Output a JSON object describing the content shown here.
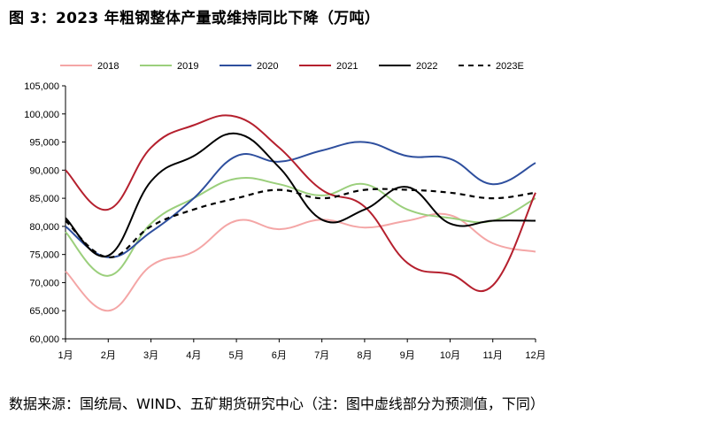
{
  "title": "图 3：2023 年粗钢整体产量或维持同比下降（万吨）",
  "source": "数据来源：国统局、WIND、五矿期货研究中心（注：图中虚线部分为预测值，下同）",
  "chart_data": {
    "type": "line",
    "categories": [
      "1月",
      "2月",
      "3月",
      "4月",
      "5月",
      "6月",
      "7月",
      "8月",
      "9月",
      "10月",
      "11月",
      "12月"
    ],
    "ylim": [
      60000,
      105000
    ],
    "yticks": [
      60000,
      65000,
      70000,
      75000,
      80000,
      85000,
      90000,
      95000,
      100000,
      105000
    ],
    "ytick_labels": [
      "60,000",
      "65,000",
      "70,000",
      "75,000",
      "80,000",
      "85,000",
      "90,000",
      "95,000",
      "100,000",
      "105,000"
    ],
    "legend_position": "top",
    "series": [
      {
        "name": "2018",
        "color": "#f4a6a6",
        "dash": false,
        "values": [
          72000,
          65000,
          73000,
          75500,
          81000,
          79500,
          81200,
          79800,
          81000,
          82000,
          77000,
          75500
        ]
      },
      {
        "name": "2019",
        "color": "#9bcf7c",
        "dash": false,
        "values": [
          79000,
          71200,
          80500,
          85000,
          88500,
          87500,
          85500,
          87500,
          83000,
          81500,
          81000,
          85000
        ]
      },
      {
        "name": "2020",
        "color": "#2e4f9e",
        "dash": false,
        "values": [
          80000,
          74500,
          79000,
          85000,
          92500,
          91500,
          93500,
          95000,
          92500,
          92000,
          87500,
          91300
        ]
      },
      {
        "name": "2021",
        "color": "#b5202e",
        "dash": false,
        "values": [
          90000,
          83000,
          94000,
          98000,
          99500,
          94000,
          86500,
          83500,
          73500,
          71500,
          69500,
          86000
        ]
      },
      {
        "name": "2022",
        "color": "#000000",
        "dash": false,
        "values": [
          81500,
          74800,
          88000,
          92500,
          96500,
          90500,
          81200,
          83000,
          87000,
          80500,
          81000,
          81000
        ]
      },
      {
        "name": "2023E",
        "color": "#000000",
        "dash": true,
        "values": [
          81000,
          74500,
          80000,
          83000,
          85000,
          86500,
          85000,
          86500,
          86500,
          86000,
          85000,
          86000
        ]
      }
    ]
  }
}
